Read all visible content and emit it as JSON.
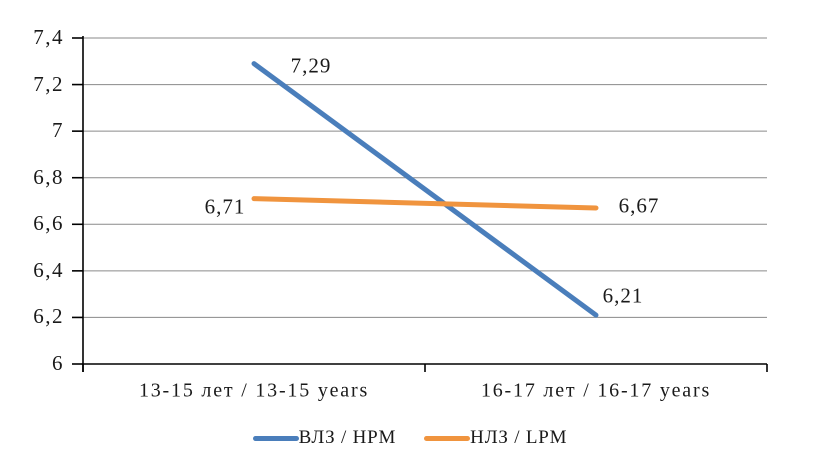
{
  "chart_data": {
    "type": "line",
    "title": "",
    "xlabel": "",
    "ylabel": "",
    "categories": [
      "13-15 лет / 13-15 years",
      "16-17 лет / 16-17 years"
    ],
    "series": [
      {
        "name": "ВЛЗ / HPM",
        "values": [
          7.29,
          6.21
        ],
        "point_labels": [
          "7,29",
          "6,21"
        ],
        "color": "#4a7ebb"
      },
      {
        "name": "НЛЗ / LPM",
        "values": [
          6.71,
          6.67
        ],
        "point_labels": [
          "6,71",
          "6,67"
        ],
        "color": "#f0943e"
      }
    ],
    "y_axis": {
      "min": 6,
      "max": 7.4,
      "step": 0.2,
      "tick_labels": [
        "6",
        "6,2",
        "6,4",
        "6,6",
        "6,8",
        "7",
        "7,2",
        "7,4"
      ]
    },
    "grid": "horizontal",
    "legend_position": "bottom",
    "colors": {
      "axis": "#000000",
      "gridline": "#8a8a8a",
      "background": "#ffffff",
      "text": "#1a1a1a"
    }
  }
}
